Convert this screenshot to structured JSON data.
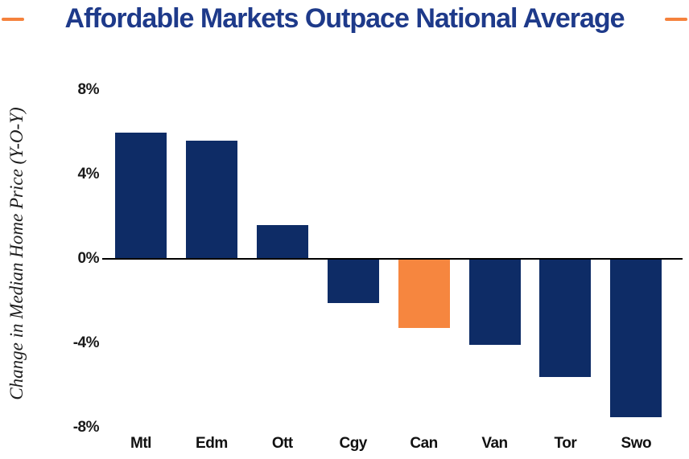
{
  "chart_data": {
    "type": "bar",
    "title": "Affordable Markets Outpace National Average",
    "ylabel": "Change in Median Home Price (Y-O-Y)",
    "xlabel": "",
    "categories": [
      "Mtl",
      "Edm",
      "Ott",
      "Cgy",
      "Can",
      "Van",
      "Tor",
      "Swo"
    ],
    "values": [
      6.0,
      5.6,
      1.6,
      -2.1,
      -3.3,
      -4.1,
      -5.6,
      -7.5
    ],
    "unit": "%",
    "ylim": [
      -8,
      8
    ],
    "yticks": [
      8,
      4,
      0,
      -4,
      -8
    ],
    "ytick_labels": [
      "8%",
      "4%",
      "0%",
      "-4%",
      "-8%"
    ],
    "highlight_category": "Can",
    "grid": false,
    "legend": false,
    "colors": {
      "bar": "#0e2c66",
      "highlight_bar": "#f6863f",
      "title": "#1e3a8a",
      "accent_dash": "#f5823c",
      "axis_line": "#000000",
      "tick_text": "#1a1a1a"
    }
  }
}
